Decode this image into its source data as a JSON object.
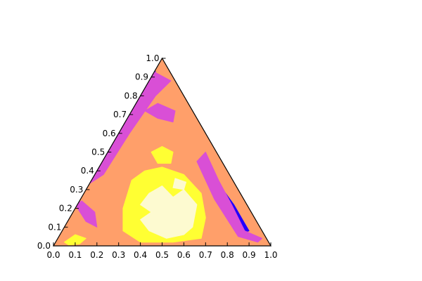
{
  "chart_data": {
    "type": "heatmap",
    "subtype": "ternary-filled-contour",
    "title": "",
    "bottom_axis_ticks": [
      "0.0",
      "0.1",
      "0.2",
      "0.3",
      "0.4",
      "0.5",
      "0.6",
      "0.7",
      "0.8",
      "0.9",
      "1.0"
    ],
    "left_axis_ticks": [
      "0.0",
      "0.1",
      "0.2",
      "0.3",
      "0.4",
      "0.5",
      "0.6",
      "0.7",
      "0.8",
      "0.9",
      "1.0"
    ],
    "axis_range": [
      0,
      1
    ],
    "grid": false,
    "colormap": "plasma-like",
    "colors": {
      "high": "#fdfad0",
      "upper": "#ffff33",
      "mid": "#ff9f6a",
      "lower": "#d94fd6",
      "low": "#2200ff"
    },
    "regions": [
      {
        "level": "low",
        "points": [
          [
            0.4,
            0.9
          ],
          [
            0.31,
            0.72
          ],
          [
            0.18,
            0.45
          ],
          [
            0.11,
            0.3
          ],
          [
            0.13,
            0.28
          ],
          [
            0.2,
            0.4
          ],
          [
            0.27,
            0.55
          ],
          [
            0.34,
            0.7
          ],
          [
            0.42,
            0.86
          ],
          [
            0.47,
            0.93
          ]
        ]
      },
      {
        "level": "low",
        "points": [
          [
            0.7,
            0.45
          ],
          [
            0.78,
            0.3
          ],
          [
            0.83,
            0.22
          ],
          [
            0.88,
            0.12
          ],
          [
            0.9,
            0.08
          ],
          [
            0.87,
            0.07
          ],
          [
            0.8,
            0.18
          ],
          [
            0.73,
            0.32
          ],
          [
            0.69,
            0.43
          ]
        ]
      },
      {
        "level": "lower",
        "points": [
          [
            0.46,
            0.93
          ],
          [
            0.36,
            0.75
          ],
          [
            0.26,
            0.55
          ],
          [
            0.17,
            0.4
          ],
          [
            0.15,
            0.32
          ],
          [
            0.23,
            0.38
          ],
          [
            0.35,
            0.6
          ],
          [
            0.47,
            0.8
          ],
          [
            0.54,
            0.88
          ]
        ]
      },
      {
        "level": "lower",
        "points": [
          [
            0.7,
            0.5
          ],
          [
            0.76,
            0.35
          ],
          [
            0.82,
            0.22
          ],
          [
            0.88,
            0.08
          ],
          [
            0.96,
            0.04
          ],
          [
            0.94,
            0.02
          ],
          [
            0.85,
            0.05
          ],
          [
            0.74,
            0.25
          ],
          [
            0.66,
            0.45
          ]
        ]
      },
      {
        "level": "lower",
        "points": [
          [
            0.1,
            0.22
          ],
          [
            0.15,
            0.13
          ],
          [
            0.2,
            0.1
          ],
          [
            0.19,
            0.18
          ],
          [
            0.13,
            0.24
          ]
        ]
      },
      {
        "level": "lower",
        "points": [
          [
            0.42,
            0.72
          ],
          [
            0.48,
            0.68
          ],
          [
            0.55,
            0.66
          ],
          [
            0.56,
            0.72
          ],
          [
            0.48,
            0.76
          ]
        ]
      },
      {
        "level": "upper",
        "points": [
          [
            0.36,
            0.35
          ],
          [
            0.42,
            0.4
          ],
          [
            0.5,
            0.42
          ],
          [
            0.6,
            0.38
          ],
          [
            0.68,
            0.28
          ],
          [
            0.7,
            0.15
          ],
          [
            0.68,
            0.04
          ],
          [
            0.55,
            0.02
          ],
          [
            0.4,
            0.02
          ],
          [
            0.32,
            0.08
          ],
          [
            0.32,
            0.2
          ]
        ]
      },
      {
        "level": "upper",
        "points": [
          [
            0.45,
            0.5
          ],
          [
            0.5,
            0.53
          ],
          [
            0.55,
            0.5
          ],
          [
            0.54,
            0.44
          ],
          [
            0.48,
            0.44
          ]
        ]
      },
      {
        "level": "upper",
        "points": [
          [
            0.05,
            0.02
          ],
          [
            0.1,
            0.06
          ],
          [
            0.15,
            0.04
          ],
          [
            0.12,
            0.01
          ],
          [
            0.07,
            0.005
          ]
        ]
      },
      {
        "level": "high",
        "points": [
          [
            0.44,
            0.28
          ],
          [
            0.5,
            0.32
          ],
          [
            0.55,
            0.26
          ],
          [
            0.6,
            0.3
          ],
          [
            0.66,
            0.22
          ],
          [
            0.64,
            0.1
          ],
          [
            0.6,
            0.06
          ],
          [
            0.52,
            0.04
          ],
          [
            0.44,
            0.08
          ],
          [
            0.4,
            0.14
          ],
          [
            0.45,
            0.18
          ],
          [
            0.4,
            0.22
          ]
        ]
      },
      {
        "level": "high",
        "points": [
          [
            0.56,
            0.36
          ],
          [
            0.61,
            0.34
          ],
          [
            0.6,
            0.3
          ],
          [
            0.55,
            0.31
          ]
        ]
      }
    ]
  }
}
